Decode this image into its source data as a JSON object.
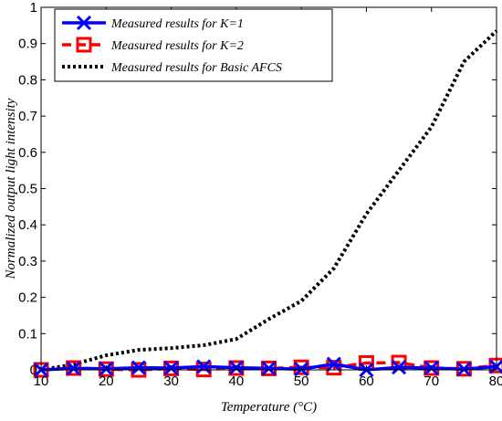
{
  "chart_data": {
    "type": "line",
    "xlabel": "Temperature (°C)",
    "ylabel": "Normalized output light intensity",
    "xlim": [
      10,
      80
    ],
    "ylim": [
      0,
      1
    ],
    "xticks": [
      10,
      20,
      30,
      40,
      50,
      60,
      70,
      80
    ],
    "yticks": [
      0,
      0.1,
      0.2,
      0.3,
      0.4,
      0.5,
      0.6,
      0.7,
      0.8,
      0.9,
      1
    ],
    "grid": false,
    "legend_position": "top-left",
    "series": [
      {
        "name": "Measured results for K=1",
        "color": "#0000ff",
        "marker": "x",
        "line_style": "solid",
        "x": [
          10,
          15,
          20,
          25,
          30,
          35,
          40,
          45,
          50,
          55,
          60,
          65,
          70,
          75,
          80
        ],
        "y": [
          0.0,
          0.004,
          0.003,
          0.006,
          0.005,
          0.009,
          0.006,
          0.004,
          0.002,
          0.016,
          0.0,
          0.007,
          0.005,
          0.002,
          0.009
        ]
      },
      {
        "name": "Measured results for K=2",
        "color": "#ff0000",
        "marker": "square",
        "line_style": "dashed",
        "x": [
          10,
          15,
          20,
          25,
          30,
          35,
          40,
          45,
          50,
          55,
          60,
          65,
          70,
          75,
          80
        ],
        "y": [
          0.0,
          0.005,
          0.002,
          0.0,
          0.004,
          0.001,
          0.005,
          0.004,
          0.007,
          0.006,
          0.019,
          0.02,
          0.005,
          0.003,
          0.012
        ]
      },
      {
        "name": "Measured results for Basic AFCS",
        "color": "#000000",
        "marker": "none",
        "line_style": "dotted",
        "x": [
          10,
          15,
          20,
          25,
          30,
          35,
          40,
          45,
          50,
          55,
          60,
          65,
          70,
          75,
          80
        ],
        "y": [
          0.0,
          0.015,
          0.04,
          0.055,
          0.06,
          0.068,
          0.085,
          0.14,
          0.19,
          0.28,
          0.43,
          0.55,
          0.67,
          0.85,
          0.935
        ]
      }
    ]
  }
}
